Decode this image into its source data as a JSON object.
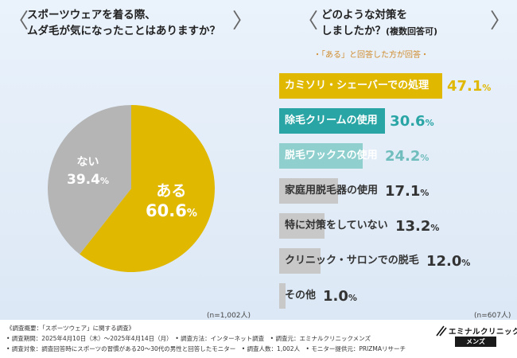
{
  "left": {
    "question_line1": "スポーツウェアを着る際、",
    "question_line2": "ムダ毛が気になったことはありますか？",
    "n_label": "(n=1,002人)"
  },
  "right": {
    "question_line1": "どのような対策を",
    "question_line2_main": "しましたか？",
    "question_line2_suffix": "(複数回答可)",
    "sub_note": "・「ある」と回答した方が回答・",
    "n_label": "(n=607人)"
  },
  "chart_data": [
    {
      "type": "pie",
      "title": "スポーツウェアを着る際、ムダ毛が気になったことはありますか？",
      "slices": [
        {
          "label": "ある",
          "value_text": "60.6",
          "value": 60.6,
          "color": "#e0b800",
          "label_color": "#ffffff"
        },
        {
          "label": "ない",
          "value_text": "39.4",
          "value": 39.4,
          "color": "#b5b5b5",
          "label_color": "#ffffff"
        }
      ],
      "unit": "%"
    },
    {
      "type": "bar",
      "orientation": "horizontal",
      "title": "どのような対策をしましたか？(複数回答可)",
      "max_value": 47.1,
      "unit": "%",
      "bars": [
        {
          "label": "カミソリ・シェーバーでの処理",
          "value_text": "47.1",
          "value": 47.1,
          "color": "#e0b800",
          "text_color": "#ffffff",
          "value_color": "#e0b800"
        },
        {
          "label": "除毛クリームの使用",
          "value_text": "30.6",
          "value": 30.6,
          "color": "#2aa5a5",
          "text_color": "#ffffff",
          "value_color": "#2aa5a5"
        },
        {
          "label": "脱毛ワックスの使用",
          "value_text": "24.2",
          "value": 24.2,
          "color": "#8fd0cf",
          "text_color": "#ffffff",
          "value_color": "#6fbdbc"
        },
        {
          "label": "家庭用脱毛器の使用",
          "value_text": "17.1",
          "value": 17.1,
          "color": "#c8c8c8",
          "text_color": "#333333",
          "value_color": "#333333"
        },
        {
          "label": "特に対策をしていない",
          "value_text": "13.2",
          "value": 13.2,
          "color": "#c8c8c8",
          "text_color": "#333333",
          "value_color": "#333333"
        },
        {
          "label": "クリニック・サロンでの脱毛",
          "value_text": "12.0",
          "value": 12.0,
          "color": "#c8c8c8",
          "text_color": "#333333",
          "value_color": "#333333"
        },
        {
          "label": "その他",
          "value_text": "1.0",
          "value": 1.0,
          "color": "#c8c8c8",
          "text_color": "#333333",
          "value_color": "#333333"
        }
      ]
    }
  ],
  "footer": {
    "line1": "《調査概要：「スポーツウェア」に関する調査》",
    "line2": "• 調査期間：2025年4月10日（木）～2025年4月14日（月）　• 調査方法：インターネット調査　• 調査元：エミナルクリニックメンズ",
    "line3": "• 調査対象：調査回答時にスポーツの習慣がある20～30代の男性と回答したモニター　• 調査人数：1,002人　• モニター提供元：PRIZMAリサーチ",
    "logo_main": "エミナルクリニック",
    "logo_sub": "メンズ"
  }
}
